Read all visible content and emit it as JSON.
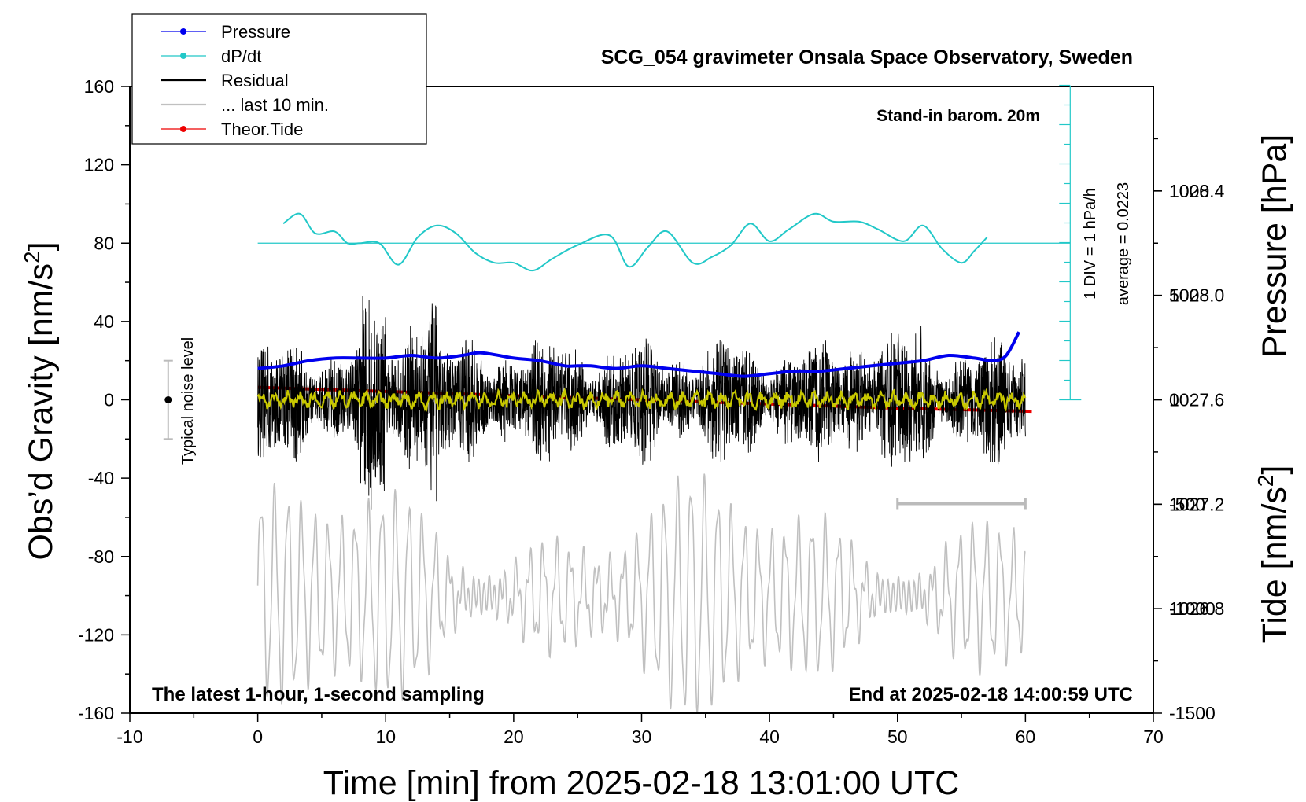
{
  "chart_data": {
    "type": "line",
    "title": "SCG_054 gravimeter Onsala Space Observatory, Sweden",
    "xlabel": "Time [min] from 2025-02-18 13:01:00 UTC",
    "ylabel_left": "Obs’d Gravity [nm/s2]",
    "ylabel_left_main": "Obs’d Gravity [nm/s",
    "ylabel_left_sup": "2",
    "ylabel_left_end": "]",
    "ylabel_right_pressure": "Pressure [hPa]",
    "ylabel_right_tide": "Tide [nm/s2]",
    "ylabel_right_tide_main": "Tide [nm/s",
    "ylabel_right_tide_sup": "2",
    "ylabel_right_tide_end": "]",
    "xlim": [
      -10,
      70
    ],
    "ylim": [
      -160,
      160
    ],
    "x_ticks": [
      -10,
      0,
      10,
      20,
      30,
      40,
      50,
      60,
      70
    ],
    "y_ticks": [
      -160,
      -120,
      -80,
      -40,
      0,
      40,
      80,
      120,
      160
    ],
    "pressure_axis": {
      "ticks": [
        "1026.8",
        "1027.2",
        "1027.6",
        "1028.0",
        "1028.4"
      ],
      "range": [
        1026.4,
        1028.8
      ]
    },
    "tide_axis": {
      "ticks": [
        "-1500",
        "-1000",
        "-500",
        "0",
        "500",
        "1000"
      ],
      "range": [
        -1500,
        1500
      ]
    },
    "legend": {
      "placement": "top-left",
      "entries": [
        {
          "label": "Pressure",
          "color": "#0000ee",
          "marker": true
        },
        {
          "label": "dP/dt",
          "color": "#22c8c8",
          "marker": true
        },
        {
          "label": "Residual",
          "color": "#000000",
          "marker": false
        },
        {
          "label": "... last 10 min.",
          "color": "#c0c0c0",
          "marker": false
        },
        {
          "label": "Theor.Tide",
          "color": "#ee0000",
          "marker": true
        }
      ]
    },
    "annotations": {
      "barometer": "Stand-in barom. 20m",
      "div": "1 DIV = 1 hPa/h",
      "average": "average = 0.0223",
      "noise": "Typical noise level",
      "latest": "The latest 1-hour, 1-second sampling",
      "end": "End at 2025-02-18 14:00:59 UTC"
    },
    "noise_bar": {
      "x": -7,
      "y_center": 0,
      "y_low": -20,
      "y_high": 20
    },
    "last10_bar": {
      "x_start": 50,
      "x_end": 60,
      "y": -53
    },
    "dpdt_zero_level": 80,
    "colors": {
      "pressure": "#0000ee",
      "dpdt": "#22c8c8",
      "residual": "#000000",
      "residual_mean": "#c8c800",
      "last10": "#c0c0c0",
      "tide": "#ee0000"
    },
    "series": [
      {
        "name": "Pressure",
        "axis": "pressure_hPa",
        "x": [
          0,
          2,
          4,
          6,
          8,
          10,
          12,
          14,
          16,
          17.5,
          20,
          22,
          24,
          25,
          26,
          28,
          30,
          32,
          34,
          36,
          38,
          40,
          42,
          44,
          46,
          48,
          50,
          52,
          54,
          56,
          57.5,
          58.5,
          59.5
        ],
        "values": [
          1027.72,
          1027.73,
          1027.75,
          1027.76,
          1027.76,
          1027.76,
          1027.77,
          1027.76,
          1027.77,
          1027.78,
          1027.76,
          1027.75,
          1027.73,
          1027.73,
          1027.73,
          1027.72,
          1027.73,
          1027.72,
          1027.71,
          1027.7,
          1027.69,
          1027.7,
          1027.71,
          1027.71,
          1027.72,
          1027.73,
          1027.74,
          1027.75,
          1027.77,
          1027.76,
          1027.75,
          1027.77,
          1027.86
        ]
      },
      {
        "name": "dP/dt",
        "axis": "gravity_nm_s2",
        "x": [
          2,
          3.3,
          4.5,
          6,
          7,
          8,
          9.5,
          11,
          12.5,
          14,
          15.5,
          17,
          18.5,
          20,
          21.5,
          23,
          25,
          27.5,
          29,
          30.5,
          32,
          34,
          35.5,
          37,
          38.5,
          40,
          41.5,
          43.5,
          45,
          47,
          48.5,
          50.5,
          52,
          53.5,
          55,
          56,
          57
        ],
        "values": [
          90,
          95,
          85,
          86,
          80,
          80,
          80,
          69,
          83,
          89,
          85,
          75,
          70,
          70,
          66,
          72,
          79,
          84,
          68,
          78,
          86,
          70,
          73,
          79,
          90,
          81,
          87,
          95,
          91,
          91,
          87,
          81,
          89,
          77,
          70,
          76,
          83
        ]
      },
      {
        "name": "Theor.Tide",
        "axis": "tide_nm_s2",
        "x": [
          0,
          10,
          20,
          30,
          40,
          50,
          60.5
        ],
        "values": [
          60,
          40,
          20,
          0,
          -20,
          -40,
          -55
        ]
      }
    ]
  }
}
